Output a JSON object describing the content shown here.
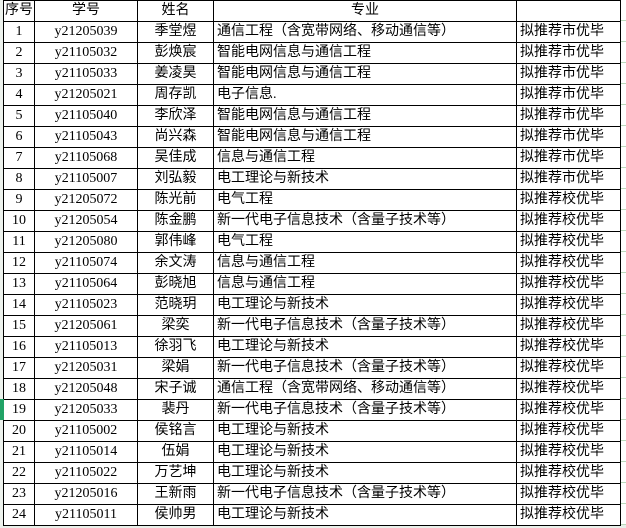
{
  "table": {
    "headers": [
      "序号",
      "学号",
      "姓名",
      "专业",
      ""
    ],
    "rows": [
      [
        "1",
        "y21205039",
        "季堂煜",
        "通信工程（含宽带网络、移动通信等）",
        "拟推荐市优毕"
      ],
      [
        "2",
        "y21105032",
        "彭焕宸",
        "智能电网信息与通信工程",
        "拟推荐市优毕"
      ],
      [
        "3",
        "y21105033",
        "姜凌昊",
        "智能电网信息与通信工程",
        "拟推荐市优毕"
      ],
      [
        "4",
        "y21205021",
        "周存凯",
        "电子信息.",
        "拟推荐市优毕"
      ],
      [
        "5",
        "y21105040",
        "李欣泽",
        "智能电网信息与通信工程",
        "拟推荐市优毕"
      ],
      [
        "6",
        "y21105043",
        "尚兴森",
        "智能电网信息与通信工程",
        "拟推荐市优毕"
      ],
      [
        "7",
        "y21105068",
        "吴佳成",
        "信息与通信工程",
        "拟推荐市优毕"
      ],
      [
        "8",
        "y21105007",
        "刘弘毅",
        "电工理论与新技术",
        "拟推荐市优毕"
      ],
      [
        "9",
        "y21205072",
        "陈光前",
        "电气工程",
        "拟推荐校优毕"
      ],
      [
        "10",
        "y21205054",
        "陈金鹏",
        "新一代电子信息技术（含量子技术等）",
        "拟推荐校优毕"
      ],
      [
        "11",
        "y21205080",
        "郭伟峰",
        "电气工程",
        "拟推荐校优毕"
      ],
      [
        "12",
        "y21105074",
        "余文涛",
        "信息与通信工程",
        "拟推荐校优毕"
      ],
      [
        "13",
        "y21105064",
        "彭晓旭",
        "信息与通信工程",
        "拟推荐校优毕"
      ],
      [
        "14",
        "y21105023",
        "范晓玥",
        "电工理论与新技术",
        "拟推荐校优毕"
      ],
      [
        "15",
        "y21205061",
        "梁奕",
        "新一代电子信息技术（含量子技术等）",
        "拟推荐校优毕"
      ],
      [
        "16",
        "y21105013",
        "徐羽飞",
        "电工理论与新技术",
        "拟推荐校优毕"
      ],
      [
        "17",
        "y21205031",
        "梁娟",
        "新一代电子信息技术（含量子技术等）",
        "拟推荐校优毕"
      ],
      [
        "18",
        "y21205048",
        "宋子诚",
        "通信工程（含宽带网络、移动通信等）",
        "拟推荐校优毕"
      ],
      [
        "19",
        "y21205033",
        "裴丹",
        "新一代电子信息技术（含量子技术等）",
        "拟推荐校优毕"
      ],
      [
        "20",
        "y21105002",
        "侯铭言",
        "电工理论与新技术",
        "拟推荐校优毕"
      ],
      [
        "21",
        "y21105014",
        "伍娟",
        "电工理论与新技术",
        "拟推荐校优毕"
      ],
      [
        "22",
        "y21105022",
        "万艺坤",
        "电工理论与新技术",
        "拟推荐校优毕"
      ],
      [
        "23",
        "y21205016",
        "王新雨",
        "新一代电子信息技术（含量子技术等）",
        "拟推荐校优毕"
      ],
      [
        "24",
        "y21105011",
        "侯帅男",
        "电工理论与新技术",
        "拟推荐校优毕"
      ]
    ]
  },
  "selection": {
    "selected_row": "19"
  },
  "colors": {
    "selection_green": "#21a366",
    "grid_border": "#000000",
    "sheet_edge_tint": "#e9efe9"
  }
}
